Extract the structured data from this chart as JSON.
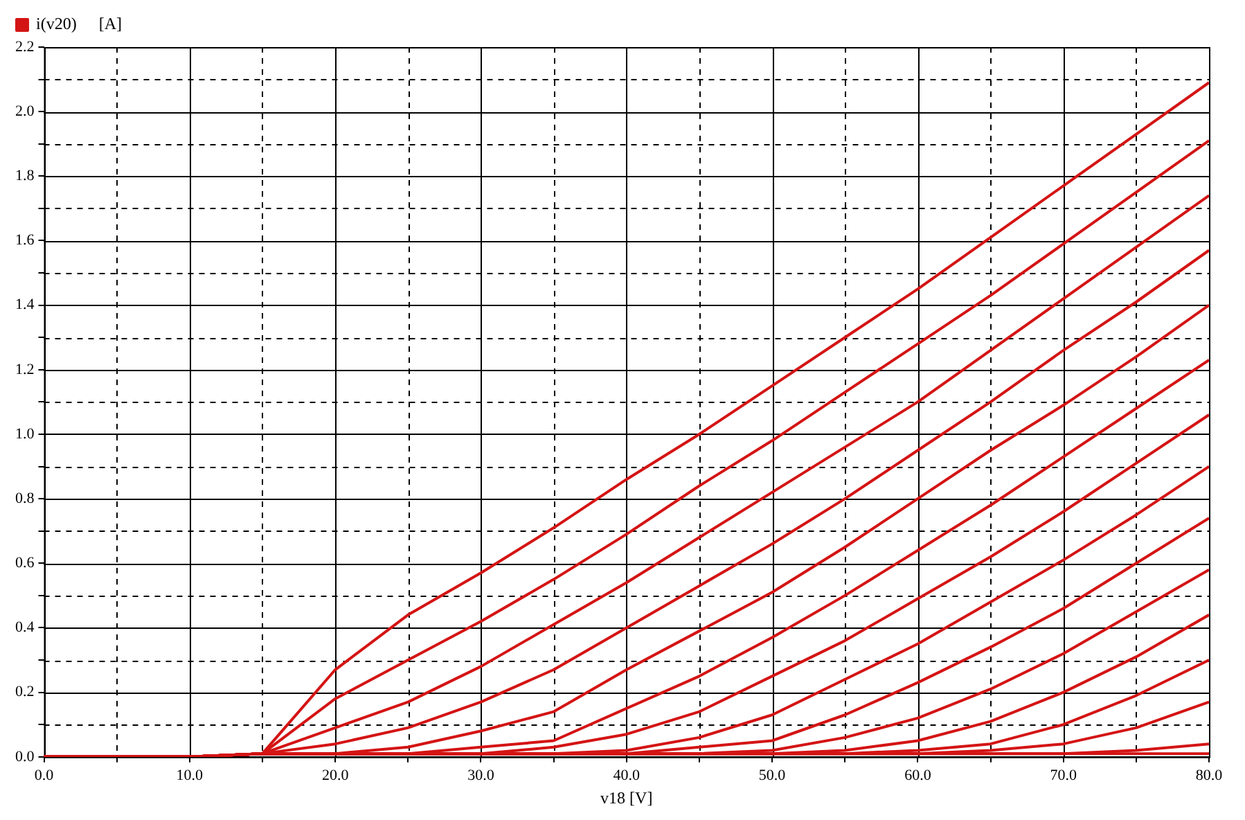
{
  "chart_data": {
    "type": "line",
    "xlabel": "v18 [V]",
    "ylabel": "[A]",
    "legend": "top left",
    "grid": true,
    "marker": "none",
    "line_style": "solid",
    "x": [
      0,
      5,
      10,
      15,
      20,
      25,
      30,
      35,
      40,
      45,
      50,
      55,
      60,
      65,
      70,
      75,
      80
    ],
    "xlim": [
      0,
      80
    ],
    "xticks": [
      {
        "value": 0,
        "label": "0.0"
      },
      {
        "value": 5,
        "label": null
      },
      {
        "value": 10,
        "label": "10.0"
      },
      {
        "value": 15,
        "label": null
      },
      {
        "value": 20,
        "label": "20.0"
      },
      {
        "value": 25,
        "label": null
      },
      {
        "value": 30,
        "label": "30.0"
      },
      {
        "value": 35,
        "label": null
      },
      {
        "value": 40,
        "label": "40.0"
      },
      {
        "value": 45,
        "label": null
      },
      {
        "value": 50,
        "label": "50.0"
      },
      {
        "value": 55,
        "label": null
      },
      {
        "value": 60,
        "label": "60.0"
      },
      {
        "value": 65,
        "label": null
      },
      {
        "value": 70,
        "label": "70.0"
      },
      {
        "value": 75,
        "label": null
      },
      {
        "value": 80,
        "label": "80.0"
      }
    ],
    "ylim": [
      0,
      2.2
    ],
    "yticks": [
      {
        "value": 0,
        "label": "0.0"
      },
      {
        "value": 0.1,
        "label": null
      },
      {
        "value": 0.2,
        "label": "0.2"
      },
      {
        "value": 0.3,
        "label": null
      },
      {
        "value": 0.4,
        "label": "0.4"
      },
      {
        "value": 0.5,
        "label": null
      },
      {
        "value": 0.6,
        "label": "0.6"
      },
      {
        "value": 0.7,
        "label": null
      },
      {
        "value": 0.8,
        "label": "0.8"
      },
      {
        "value": 0.9,
        "label": null
      },
      {
        "value": 1.0,
        "label": "1.0"
      },
      {
        "value": 1.1,
        "label": null
      },
      {
        "value": 1.2,
        "label": "1.2"
      },
      {
        "value": 1.3,
        "label": null
      },
      {
        "value": 1.4,
        "label": "1.4"
      },
      {
        "value": 1.5,
        "label": null
      },
      {
        "value": 1.6,
        "label": "1.6"
      },
      {
        "value": 1.7,
        "label": null
      },
      {
        "value": 1.8,
        "label": "1.8"
      },
      {
        "value": 1.9,
        "label": null
      },
      {
        "value": 2.0,
        "label": "2.0"
      },
      {
        "value": 2.1,
        "label": null
      },
      {
        "value": 2.2,
        "label": "2.2"
      }
    ],
    "series": [
      {
        "name": "i(v20)",
        "color": "#d41414",
        "values": [
          0,
          0,
          0,
          0.01,
          0.27,
          0.44,
          0.57,
          0.71,
          0.86,
          1.0,
          1.15,
          1.3,
          1.45,
          1.61,
          1.77,
          1.93,
          2.09
        ]
      },
      {
        "color": "#d41414",
        "values": [
          0,
          0,
          0,
          0.01,
          0.18,
          0.3,
          0.42,
          0.55,
          0.69,
          0.84,
          0.98,
          1.13,
          1.28,
          1.43,
          1.59,
          1.75,
          1.91
        ]
      },
      {
        "color": "#d41414",
        "values": [
          0,
          0,
          0,
          0.01,
          0.09,
          0.17,
          0.28,
          0.41,
          0.54,
          0.68,
          0.82,
          0.96,
          1.1,
          1.26,
          1.42,
          1.58,
          1.74
        ]
      },
      {
        "color": "#d41414",
        "values": [
          0,
          0,
          0,
          0.01,
          0.04,
          0.09,
          0.17,
          0.27,
          0.4,
          0.53,
          0.66,
          0.8,
          0.95,
          1.1,
          1.26,
          1.41,
          1.57
        ]
      },
      {
        "color": "#d41414",
        "values": [
          0,
          0,
          0,
          0.01,
          0.01,
          0.03,
          0.08,
          0.14,
          0.27,
          0.39,
          0.51,
          0.65,
          0.8,
          0.95,
          1.09,
          1.24,
          1.4
        ]
      },
      {
        "color": "#d41414",
        "values": [
          0,
          0,
          0,
          0.01,
          0.01,
          0.01,
          0.03,
          0.05,
          0.15,
          0.25,
          0.37,
          0.5,
          0.64,
          0.78,
          0.93,
          1.08,
          1.23
        ]
      },
      {
        "color": "#d41414",
        "values": [
          0,
          0,
          0,
          0.01,
          0.01,
          0.01,
          0.01,
          0.03,
          0.07,
          0.14,
          0.25,
          0.36,
          0.49,
          0.62,
          0.76,
          0.91,
          1.06
        ]
      },
      {
        "color": "#d41414",
        "values": [
          0,
          0,
          0,
          0.01,
          0.01,
          0.01,
          0.01,
          0.01,
          0.02,
          0.06,
          0.13,
          0.24,
          0.35,
          0.48,
          0.61,
          0.75,
          0.9
        ]
      },
      {
        "color": "#d41414",
        "values": [
          0,
          0,
          0,
          0.01,
          0.01,
          0.01,
          0.01,
          0.01,
          0.01,
          0.03,
          0.05,
          0.13,
          0.23,
          0.34,
          0.46,
          0.6,
          0.74
        ]
      },
      {
        "color": "#d41414",
        "values": [
          0,
          0,
          0,
          0.01,
          0.01,
          0.01,
          0.01,
          0.01,
          0.01,
          0.01,
          0.02,
          0.06,
          0.12,
          0.21,
          0.32,
          0.45,
          0.58
        ]
      },
      {
        "color": "#d41414",
        "values": [
          0,
          0,
          0,
          0.01,
          0.01,
          0.01,
          0.01,
          0.01,
          0.01,
          0.01,
          0.01,
          0.02,
          0.05,
          0.11,
          0.2,
          0.31,
          0.44
        ]
      },
      {
        "color": "#d41414",
        "values": [
          0,
          0,
          0,
          0.01,
          0.01,
          0.01,
          0.01,
          0.01,
          0.01,
          0.01,
          0.01,
          0.01,
          0.02,
          0.04,
          0.1,
          0.19,
          0.3
        ]
      },
      {
        "color": "#d41414",
        "values": [
          0,
          0,
          0,
          0.01,
          0.01,
          0.01,
          0.01,
          0.01,
          0.01,
          0.01,
          0.01,
          0.01,
          0.01,
          0.02,
          0.04,
          0.09,
          0.17
        ]
      },
      {
        "color": "#d41414",
        "values": [
          0,
          0,
          0,
          0.01,
          0.01,
          0.01,
          0.01,
          0.01,
          0.01,
          0.01,
          0.01,
          0.01,
          0.01,
          0.01,
          0.01,
          0.02,
          0.04
        ]
      },
      {
        "color": "#d41414",
        "values": [
          0,
          0,
          0,
          0.01,
          0.01,
          0.01,
          0.01,
          0.01,
          0.01,
          0.01,
          0.01,
          0.01,
          0.01,
          0.01,
          0.01,
          0.01,
          0.01
        ]
      }
    ]
  }
}
